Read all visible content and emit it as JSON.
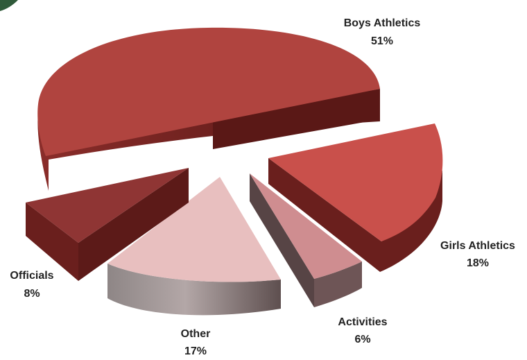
{
  "chart_data": {
    "type": "pie",
    "style": "exploded 3D pie",
    "slices": [
      {
        "label": "Boys Athletics",
        "value_label": "51%",
        "value": 51,
        "color": "#b0443f"
      },
      {
        "label": "Girls Athletics",
        "value_label": "18%",
        "value": 18,
        "color": "#c9504b"
      },
      {
        "label": "Activities",
        "value_label": "6%",
        "value": 6,
        "color": "#cf8d90"
      },
      {
        "label": "Other",
        "value_label": "17%",
        "value": 17,
        "color": "#e8bfbf"
      },
      {
        "label": "Officials",
        "value_label": "8%",
        "value": 8,
        "color": "#8f3534"
      }
    ],
    "legend": "none"
  },
  "corner_ornament_color": "#2f5a3a"
}
